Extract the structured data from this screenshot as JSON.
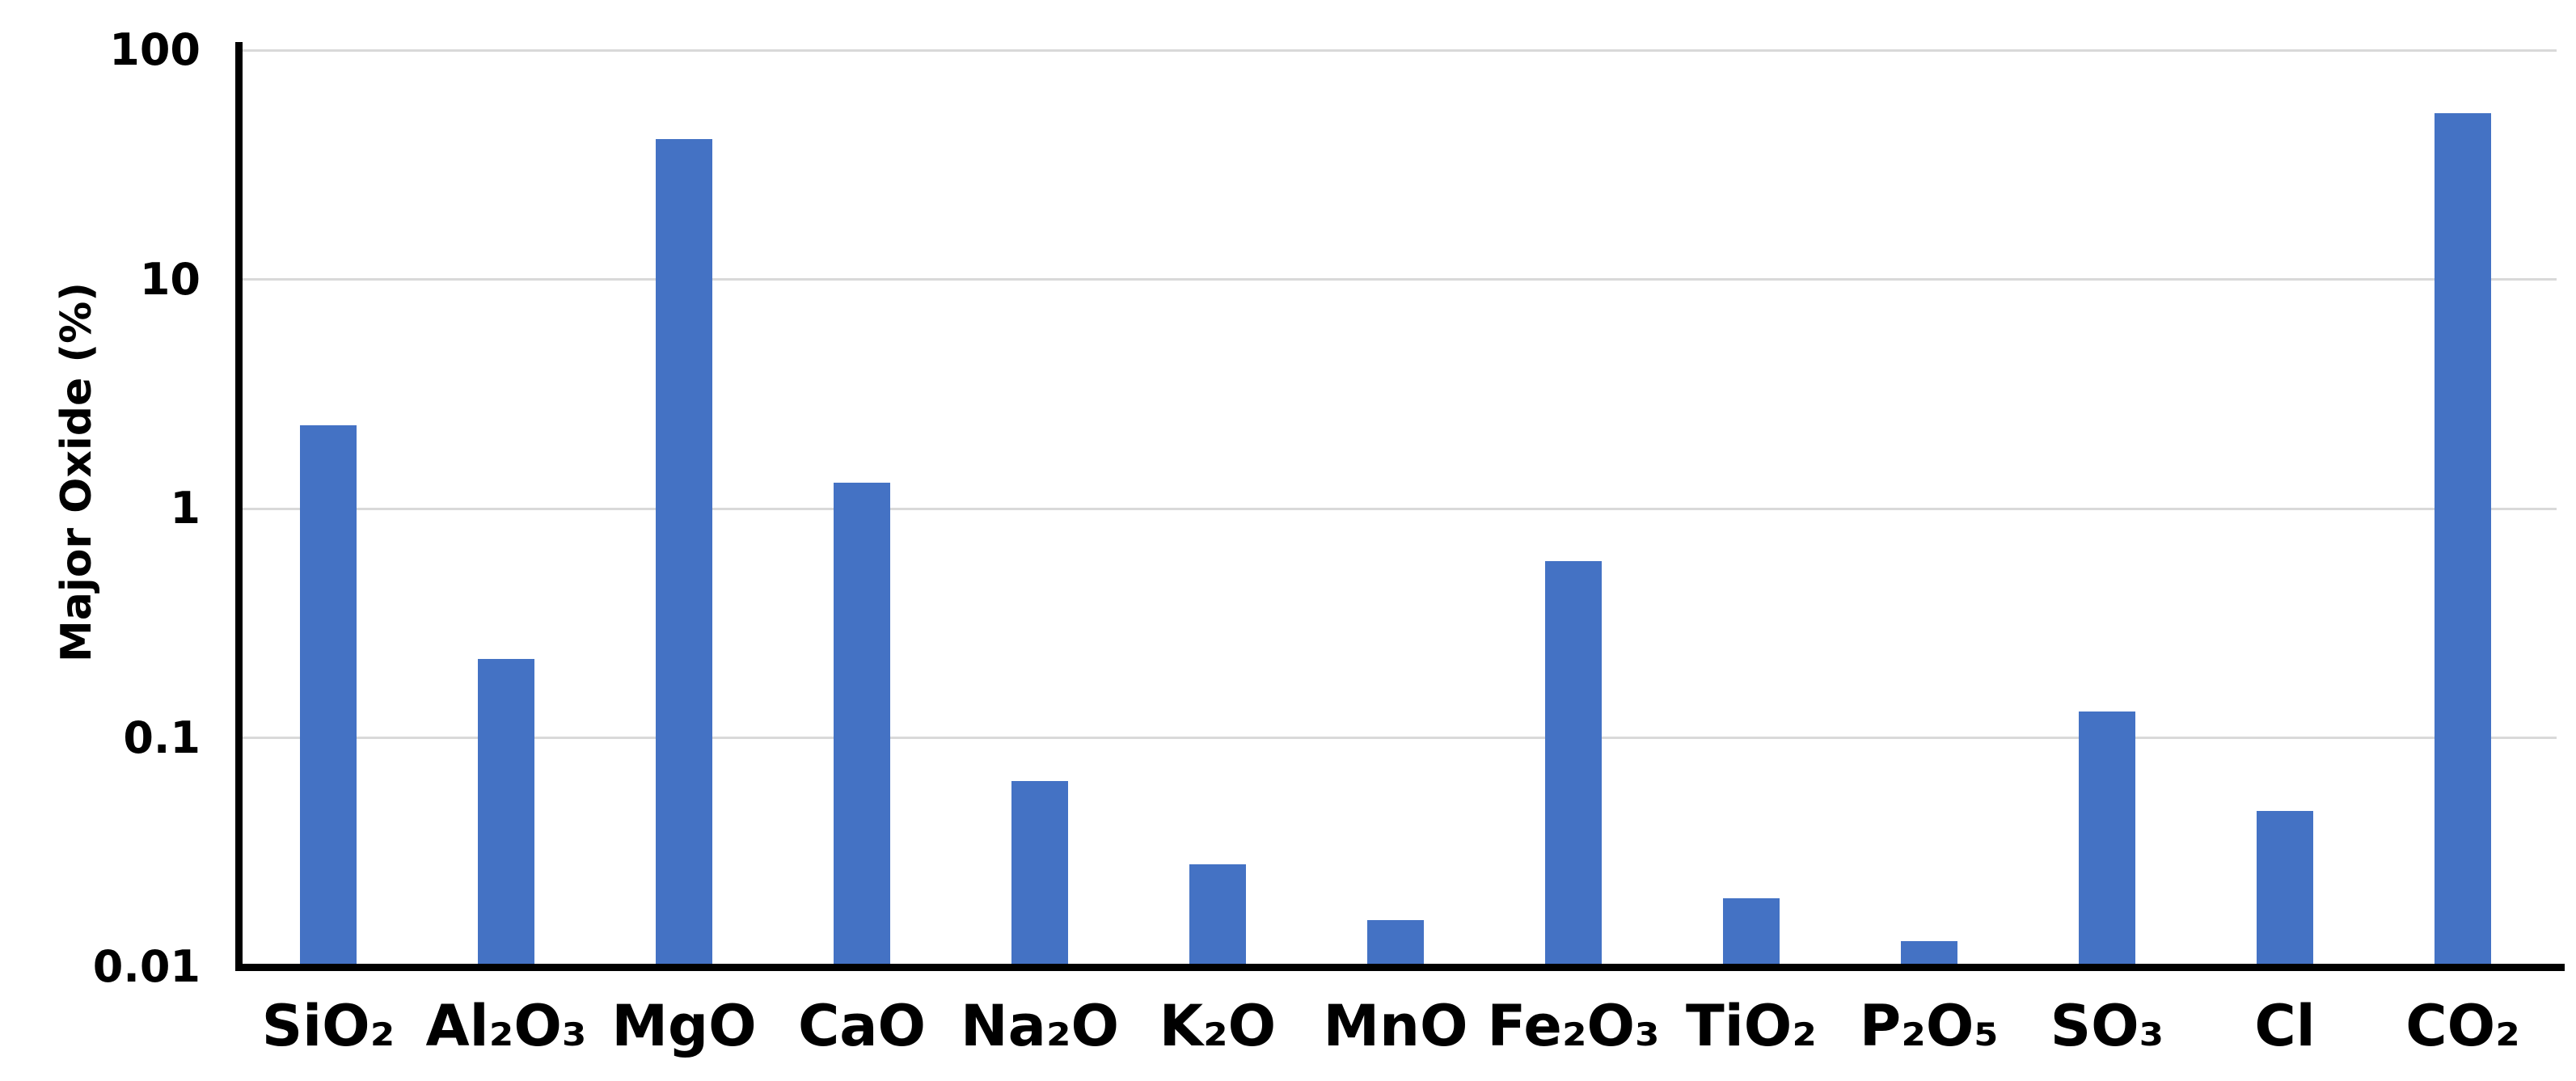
{
  "chart_data": {
    "type": "bar",
    "title": "",
    "xlabel": "",
    "ylabel": "Major Oxide (%)",
    "yscale": "log",
    "ylim": [
      0.01,
      100
    ],
    "ytick_values": [
      100,
      10,
      1,
      0.1,
      0.01
    ],
    "ytick_labels": [
      "100",
      "10",
      "1",
      "0.1",
      "0.01"
    ],
    "grid": "horizontal-gridlines-on",
    "legend": "none",
    "categories": [
      "SiO₂",
      "Al₂O₃",
      "MgO",
      "CaO",
      "Na₂O",
      "K₂O",
      "MnO",
      "Fe₂O₃",
      "TiO₂",
      "P₂O₅",
      "SO₃",
      "Cl",
      "CO₂"
    ],
    "values": [
      2.3,
      0.22,
      41,
      1.3,
      0.065,
      0.028,
      0.016,
      0.59,
      0.02,
      0.013,
      0.13,
      0.048,
      53
    ],
    "colors": {
      "bar": "#4472C4",
      "gridline": "#D9D9D9",
      "axis": "#000000",
      "text": "#000000",
      "background": "#FFFFFF"
    }
  }
}
